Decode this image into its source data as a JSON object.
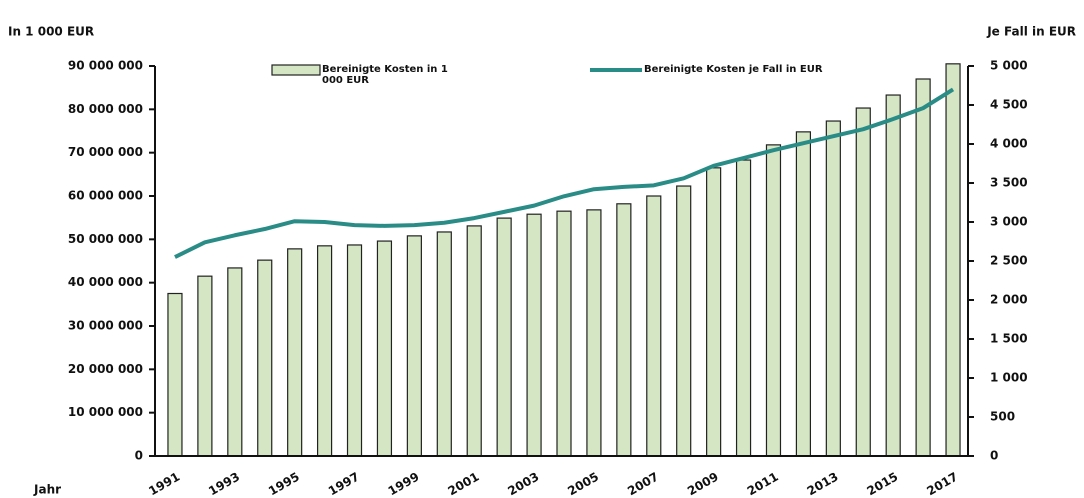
{
  "chart_data": {
    "type": "bar_line",
    "y_axis_label": "In 1 000 EUR",
    "y2_axis_label": "Je Fall in EUR",
    "x_axis_label": "Jahr",
    "categories": [
      "1991",
      null,
      "1993",
      null,
      "1995",
      null,
      "1997",
      null,
      "1999",
      null,
      "2001",
      null,
      "2003",
      null,
      "2005",
      null,
      "2007",
      null,
      "2009",
      null,
      "2011",
      null,
      "2013",
      null,
      "2015",
      null,
      "2017"
    ],
    "series": [
      {
        "name": "Bereinigte Kosten in 1 000 EUR",
        "type": "bar",
        "color": "#d4e6c3",
        "axis": "y",
        "values": [
          37500000,
          41500000,
          43400000,
          45200000,
          47800000,
          48500000,
          48700000,
          49600000,
          50800000,
          51700000,
          53100000,
          54900000,
          55800000,
          56500000,
          56800000,
          58200000,
          60000000,
          62300000,
          66500000,
          68300000,
          71800000,
          74800000,
          77300000,
          80300000,
          83300000,
          87000000,
          90500000
        ]
      },
      {
        "name": "Bereinigte Kosten je Fall in EUR",
        "type": "line",
        "color": "#2a8c86",
        "axis": "y2",
        "values": [
          2550,
          2740,
          2830,
          2910,
          3010,
          3000,
          2960,
          2950,
          2960,
          2990,
          3050,
          3130,
          3210,
          3330,
          3420,
          3450,
          3470,
          3560,
          3720,
          3820,
          3920,
          4010,
          4100,
          4190,
          4320,
          4460,
          4700
        ]
      }
    ],
    "ylim": [
      0,
      90000000
    ],
    "yticks": [
      0,
      {
        "value": 10000000,
        "label": "10 000 000"
      },
      {
        "value": 20000000,
        "label": "20 000 000"
      },
      {
        "value": 30000000,
        "label": "30 000 000"
      },
      {
        "value": 40000000,
        "label": "40 000 000"
      },
      {
        "value": 50000000,
        "label": "50 000 000"
      },
      {
        "value": 60000000,
        "label": "60 000 000"
      },
      {
        "value": 70000000,
        "label": "70 000 000"
      },
      {
        "value": 80000000,
        "label": "80 000 000"
      },
      {
        "value": 90000000,
        "label": "90 000 000"
      }
    ],
    "y2lim": [
      0,
      5000
    ],
    "y2ticks": [
      0,
      500,
      {
        "value": 1000,
        "label": "1 000"
      },
      {
        "value": 1500,
        "label": "1 500"
      },
      {
        "value": 2000,
        "label": "2 000"
      },
      {
        "value": 2500,
        "label": "2 500"
      },
      {
        "value": 3000,
        "label": "3 000"
      },
      {
        "value": 3500,
        "label": "3 500"
      },
      {
        "value": 4000,
        "label": "4 000"
      },
      {
        "value": 4500,
        "label": "4 500"
      },
      {
        "value": 5000,
        "label": "5 000"
      }
    ],
    "grid": false
  }
}
